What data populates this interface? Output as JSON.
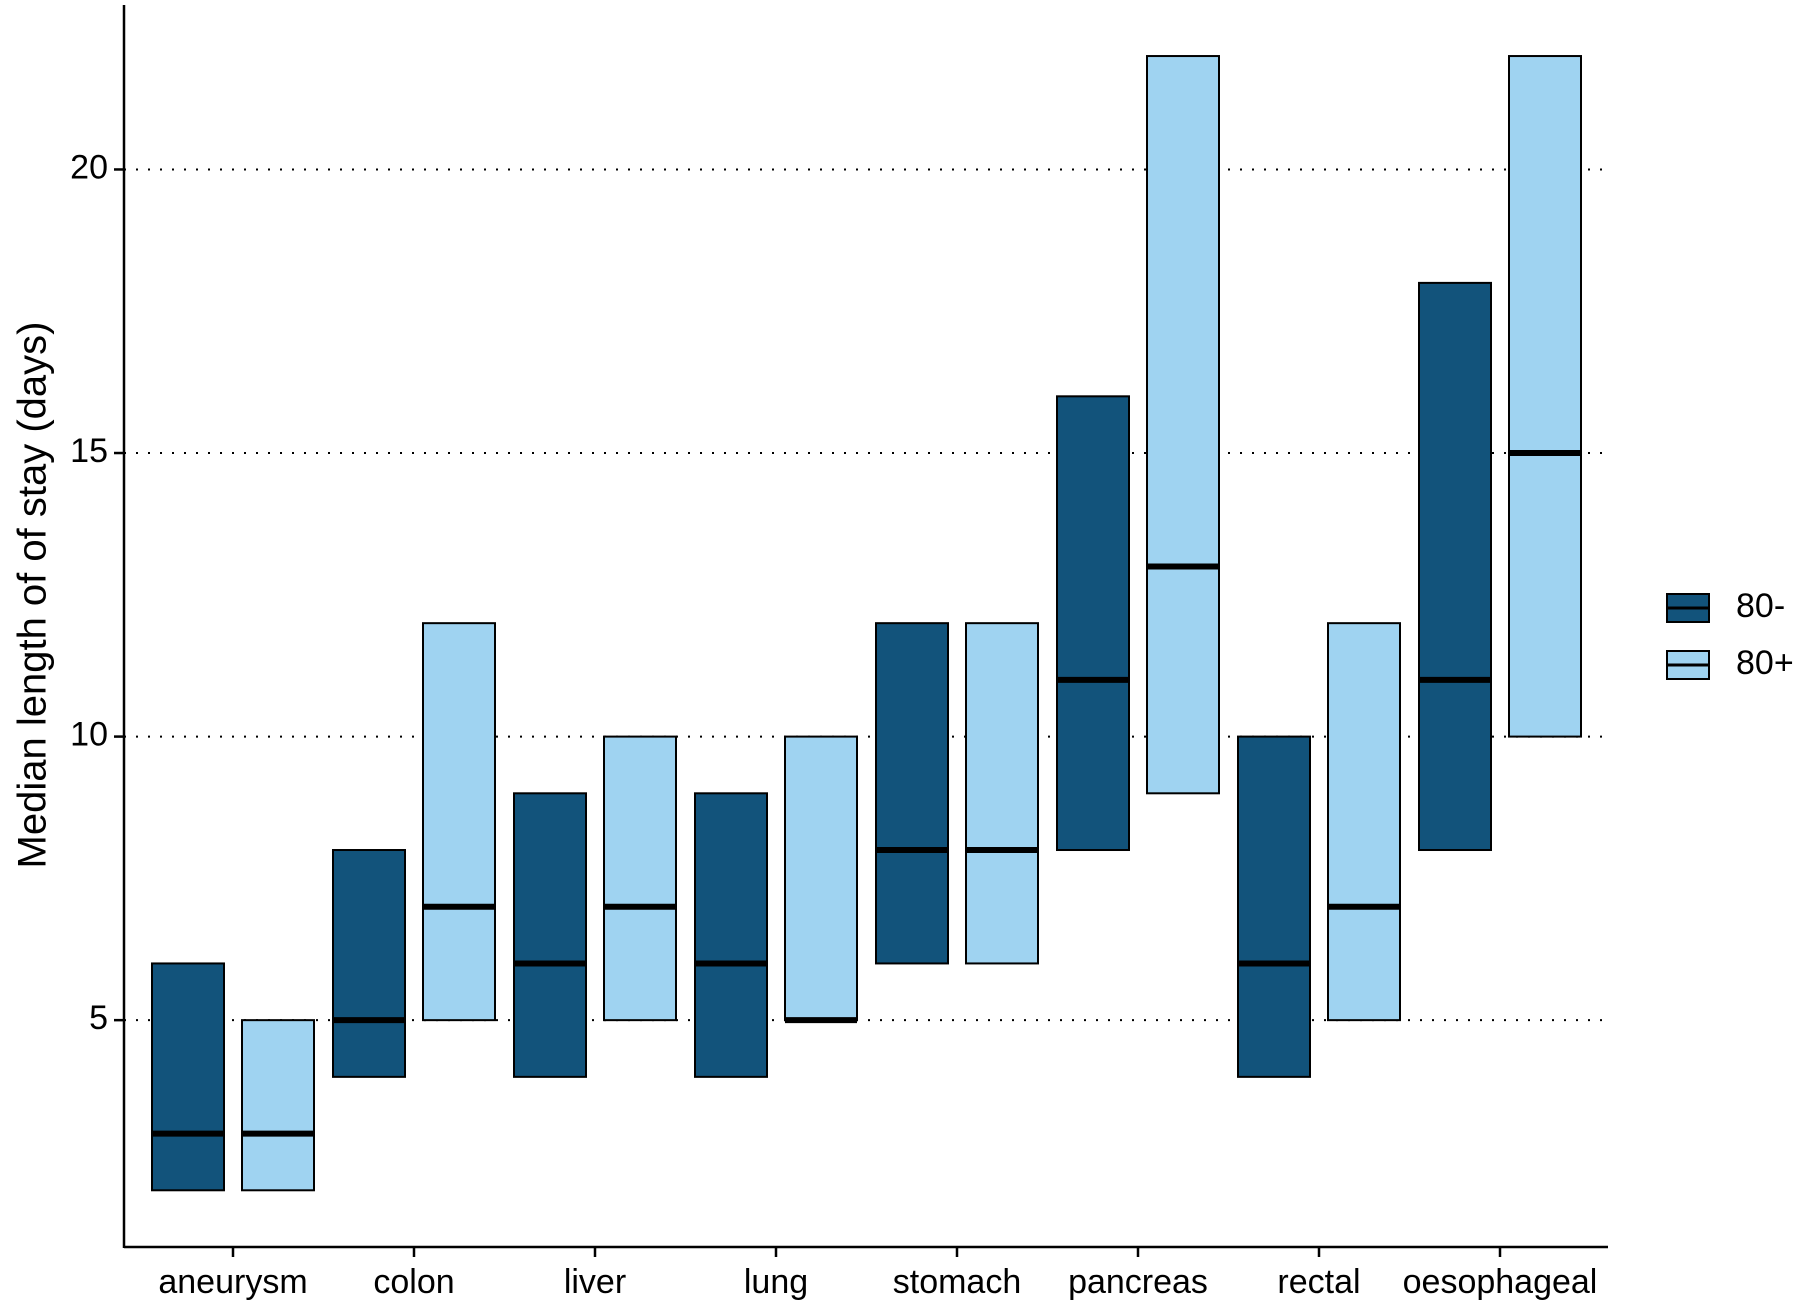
{
  "chart_data": {
    "type": "box",
    "ylabel": "Median length of of stay (days)",
    "xlabel": "",
    "ylim": [
      1.0,
      22.9
    ],
    "yticks": [
      5,
      10,
      15,
      20
    ],
    "grid": "horizontal-dotted",
    "legend_position": "right",
    "categories": [
      "aneurysm",
      "colon",
      "liver",
      "lung",
      "stomach",
      "pancreas",
      "rectal",
      "oesophageal"
    ],
    "series": [
      {
        "name": "80-",
        "color": "#12537b",
        "boxes": [
          {
            "low": 2,
            "median": 3,
            "high": 6
          },
          {
            "low": 4,
            "median": 5,
            "high": 8
          },
          {
            "low": 4,
            "median": 6,
            "high": 9
          },
          {
            "low": 4,
            "median": 6,
            "high": 9
          },
          {
            "low": 6,
            "median": 8,
            "high": 12
          },
          {
            "low": 8,
            "median": 11,
            "high": 16
          },
          {
            "low": 4,
            "median": 6,
            "high": 10
          },
          {
            "low": 8,
            "median": 11,
            "high": 18
          }
        ]
      },
      {
        "name": "80+",
        "color": "#9fd3f1",
        "boxes": [
          {
            "low": 2,
            "median": 3,
            "high": 5
          },
          {
            "low": 5,
            "median": 7,
            "high": 12
          },
          {
            "low": 5,
            "median": 7,
            "high": 10
          },
          {
            "low": 5,
            "median": 5,
            "high": 10
          },
          {
            "low": 6,
            "median": 8,
            "high": 12
          },
          {
            "low": 9,
            "median": 13,
            "high": 22
          },
          {
            "low": 5,
            "median": 7,
            "high": 12
          },
          {
            "low": 10,
            "median": 15,
            "high": 22
          }
        ]
      }
    ]
  }
}
